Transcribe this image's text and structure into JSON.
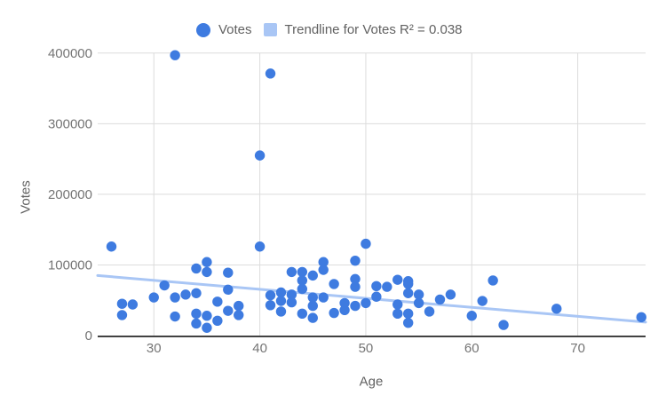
{
  "legend": {
    "series_label": "Votes",
    "trendline_label": "Trendline for Votes R² = 0.038"
  },
  "colors": {
    "point": "#3e7be0",
    "trendline": "#a9c6f5",
    "legend_swatch": "#a9c6f5",
    "gridline": "#dcdcdc",
    "axis_line": "#424242",
    "tick_text": "#757575",
    "axis_title_text": "#616161"
  },
  "chart_data": {
    "type": "scatter",
    "title": "",
    "xlabel": "Age",
    "ylabel": "Votes",
    "x_ticks": [
      30,
      40,
      50,
      60,
      70
    ],
    "y_ticks": [
      0,
      100000,
      200000,
      300000,
      400000
    ],
    "xlim": [
      24.7,
      76.4
    ],
    "ylim": [
      0,
      406000
    ],
    "grid": true,
    "legend_position": "top",
    "series": [
      {
        "name": "Votes",
        "points": [
          [
            26,
            126000
          ],
          [
            27,
            45000
          ],
          [
            27,
            29000
          ],
          [
            28,
            44000
          ],
          [
            30,
            54000
          ],
          [
            31,
            71000
          ],
          [
            32,
            397000
          ],
          [
            32,
            54000
          ],
          [
            32,
            27000
          ],
          [
            33,
            58000
          ],
          [
            34,
            95000
          ],
          [
            34,
            60000
          ],
          [
            34,
            31000
          ],
          [
            34,
            17000
          ],
          [
            35,
            104000
          ],
          [
            35,
            90000
          ],
          [
            35,
            28000
          ],
          [
            35,
            11000
          ],
          [
            36,
            48000
          ],
          [
            36,
            21000
          ],
          [
            37,
            89000
          ],
          [
            37,
            65000
          ],
          [
            37,
            35000
          ],
          [
            38,
            42000
          ],
          [
            38,
            29000
          ],
          [
            40,
            255000
          ],
          [
            40,
            126000
          ],
          [
            41,
            371000
          ],
          [
            41,
            57000
          ],
          [
            41,
            43000
          ],
          [
            42,
            61000
          ],
          [
            42,
            49000
          ],
          [
            42,
            34000
          ],
          [
            43,
            90000
          ],
          [
            43,
            58000
          ],
          [
            43,
            47000
          ],
          [
            44,
            90000
          ],
          [
            44,
            78000
          ],
          [
            44,
            66000
          ],
          [
            44,
            31000
          ],
          [
            45,
            85000
          ],
          [
            45,
            54000
          ],
          [
            45,
            42000
          ],
          [
            45,
            25000
          ],
          [
            46,
            104000
          ],
          [
            46,
            93000
          ],
          [
            46,
            54000
          ],
          [
            47,
            73000
          ],
          [
            47,
            32000
          ],
          [
            48,
            46000
          ],
          [
            48,
            36000
          ],
          [
            49,
            106000
          ],
          [
            49,
            80000
          ],
          [
            49,
            69000
          ],
          [
            49,
            42000
          ],
          [
            50,
            130000
          ],
          [
            50,
            46000
          ],
          [
            51,
            70000
          ],
          [
            51,
            55000
          ],
          [
            52,
            69000
          ],
          [
            53,
            79000
          ],
          [
            53,
            44000
          ],
          [
            53,
            31000
          ],
          [
            54,
            77000
          ],
          [
            54,
            73000
          ],
          [
            54,
            60000
          ],
          [
            54,
            31000
          ],
          [
            54,
            18000
          ],
          [
            55,
            58000
          ],
          [
            55,
            46000
          ],
          [
            56,
            34000
          ],
          [
            57,
            51000
          ],
          [
            58,
            58000
          ],
          [
            60,
            28000
          ],
          [
            61,
            49000
          ],
          [
            62,
            78000
          ],
          [
            63,
            15000
          ],
          [
            68,
            38000
          ],
          [
            76,
            26000
          ]
        ]
      }
    ],
    "trendline": {
      "series": "Votes",
      "r_squared": 0.038,
      "start": [
        24.7,
        85000
      ],
      "end": [
        76.4,
        19000
      ]
    }
  }
}
